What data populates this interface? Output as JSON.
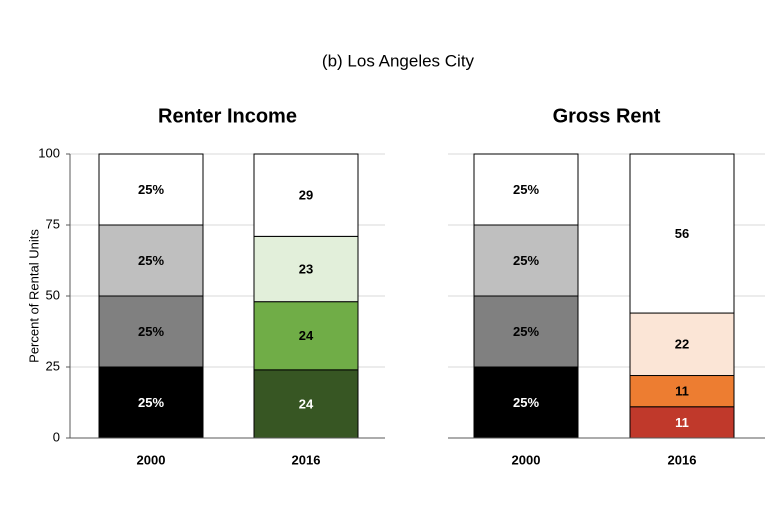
{
  "title": "(b)  Los Angeles City",
  "chart_data": [
    {
      "type": "stacked_bar",
      "title": "Renter Income",
      "ylabel": "Percent of Rental Units",
      "categories": [
        "2000",
        "2016"
      ],
      "ylim": [
        0,
        100
      ],
      "yticks": [
        0,
        25,
        50,
        75,
        100
      ],
      "grid": true,
      "series": [
        {
          "colors": [
            "#000000",
            "#375623"
          ],
          "values": [
            25,
            24
          ],
          "value_labels": [
            "25%",
            "24"
          ]
        },
        {
          "colors": [
            "#808080",
            "#70ad47"
          ],
          "values": [
            25,
            24
          ],
          "value_labels": [
            "25%",
            "24"
          ]
        },
        {
          "colors": [
            "#bfbfbf",
            "#e2efda"
          ],
          "values": [
            25,
            23
          ],
          "value_labels": [
            "25%",
            "23"
          ]
        },
        {
          "colors": [
            "#ffffff",
            "#ffffff"
          ],
          "values": [
            25,
            29
          ],
          "value_labels": [
            "25%",
            "29"
          ]
        }
      ]
    },
    {
      "type": "stacked_bar",
      "title": "Gross Rent",
      "sharey": true,
      "categories": [
        "2000",
        "2016"
      ],
      "ylim": [
        0,
        100
      ],
      "grid": true,
      "series": [
        {
          "colors": [
            "#000000",
            "#c0392b"
          ],
          "values": [
            25,
            11
          ],
          "value_labels": [
            "25%",
            "11"
          ]
        },
        {
          "colors": [
            "#808080",
            "#ed7d31"
          ],
          "values": [
            25,
            11
          ],
          "value_labels": [
            "25%",
            "11"
          ]
        },
        {
          "colors": [
            "#bfbfbf",
            "#fbe5d6"
          ],
          "values": [
            25,
            22
          ],
          "value_labels": [
            "25%",
            "22"
          ]
        },
        {
          "colors": [
            "#ffffff",
            "#ffffff"
          ],
          "values": [
            25,
            56
          ],
          "value_labels": [
            "25%",
            "56"
          ]
        }
      ]
    }
  ]
}
